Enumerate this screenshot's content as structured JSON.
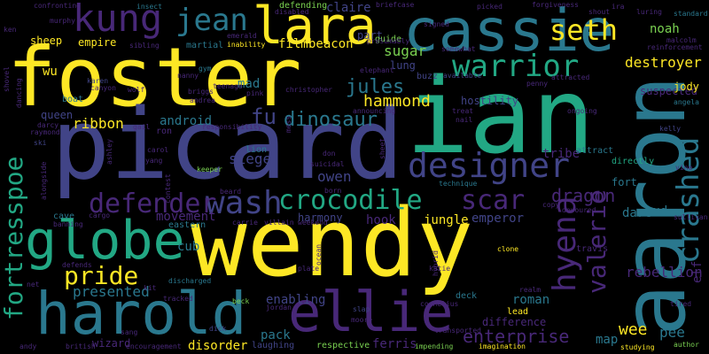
{
  "palette": [
    "#fde725",
    "#7ad151",
    "#22a884",
    "#2a788e",
    "#414487",
    "#482878",
    "#440154"
  ],
  "words": {
    "foster": "foster",
    "ian": "ian",
    "picard": "picard",
    "wendy": "wendy",
    "aaron": "aaron",
    "cassie": "cassie",
    "harold": "harold",
    "ellie": "ellie",
    "globe": "globe",
    "lara": "lara",
    "kung": "kung",
    "jean": "jean",
    "warrior": "warrior",
    "seth": "seth",
    "designer": "designer",
    "wash": "wash",
    "crocodile": "crocodile",
    "defender": "defender",
    "hyena": "hyena",
    "crashed": "crashed",
    "fortresspoe": "fortresspoe",
    "pride": "pride",
    "valerie": "valerie",
    "scar": "scar",
    "dinosaur": "dinosaur",
    "fu": "fu",
    "dragon": "dragon",
    "enterprise": "enterprise",
    "presented": "presented",
    "rebellion": "rebellion",
    "jules": "jules",
    "hammond": "hammond",
    "sugar": "sugar",
    "destroyer": "destroyer",
    "ribbon": "ribbon",
    "android": "android",
    "siege": "siege",
    "owen": "owen",
    "jungle": "jungle",
    "emperor": "emperor",
    "empire": "empire",
    "sheep": "sheep",
    "beacon": "beacon",
    "film": "film",
    "noah": "noah",
    "claire": "claire",
    "part": "part",
    "lung": "lung",
    "mad": "mad",
    "wu": "wu",
    "queen": "queen",
    "cub": "cub",
    "movement": "movement",
    "disorder": "disorder",
    "pack": "pack",
    "enabling": "enabling",
    "ferris": "ferris",
    "wee": "wee",
    "pee": "pee",
    "map": "map",
    "roman": "roman",
    "fort": "fort",
    "dare": "dare",
    "mud": "mud",
    "hook": "hook",
    "harmony": "harmony",
    "tribe": "tribe",
    "suspected": "suspected",
    "hostility": "hostility",
    "jody": "jody",
    "wizard": "wizard",
    "eastern": "eastern",
    "lion": "lion",
    "difference": "difference",
    "lead": "lead",
    "deck": "deck",
    "travis": "travis",
    "defending": "defending",
    "guide": "guide",
    "martial": "martial",
    "laughing": "laughing",
    "respective": "respective",
    "directly": "directly",
    "attract": "attract",
    "ira": "ira",
    "buzz": "buzz",
    "available": "available",
    "forgiveness": "forgiveness",
    "briefcase": "briefcase",
    "elephant": "elephant",
    "announcing": "announcing",
    "christopher": "christopher",
    "cave": "cave",
    "technique": "technique",
    "transported": "transported",
    "impending": "impending",
    "imagination": "imagination",
    "studying": "studying",
    "author": "author",
    "clone": "clone",
    "hybrid": "hybrid",
    "beck": "beck",
    "slap": "slap",
    "dick": "dick",
    "karen": "karen",
    "boat": "boat",
    "ski": "ski",
    "wolf": "wolf",
    "gym": "gym",
    "don": "don",
    "beard": "beard",
    "born": "born",
    "contest": "contest",
    "carrie": "carrie",
    "villain": "villain",
    "weekend": "weekend",
    "plate": "plate",
    "tracked": "tracked",
    "discharged": "discharged",
    "encouragement": "encouragement",
    "british": "british",
    "andy": "andy",
    "sang": "sang",
    "confronting": "confronting",
    "insect": "insect",
    "murphy": "murphy",
    "sibling": "sibling",
    "emerald": "emerald",
    "disabled": "disabled",
    "inability": "inability",
    "presumably": "presumably",
    "signed": "signed",
    "somewhat": "somewhat",
    "picked": "picked",
    "shout": "shout",
    "luring": "luring",
    "standard": "standard",
    "malcolm": "malcolm",
    "reinforcement": "reinforcement",
    "penny": "penny",
    "attracted": "attracted",
    "treat": "treat",
    "nail": "nail",
    "ongoing": "ongoing",
    "angela": "angela",
    "kelly": "kelly",
    "copy": "copy",
    "devoured": "devoured",
    "sullivan": "sullivan",
    "vine": "vine",
    "tired": "tired",
    "elf": "elf",
    "realm": "realm",
    "cornelius": "cornelius",
    "katie": "katie",
    "moore": "moore",
    "dancing": "dancing",
    "shovel": "shovel",
    "canyon": "canyon",
    "darcy": "darcy",
    "raymond": "raymond",
    "carol": "carol",
    "yang": "yang",
    "ashley": "ashley",
    "alongside": "alongside",
    "banning": "banning",
    "cargo": "cargo",
    "net": "net",
    "defends": "defends",
    "kit": "kit",
    "jordan": "jordan",
    "keeper": "keeper",
    "nanny": "nanny",
    "briggs": "briggs",
    "andrea": "andrea",
    "teenage": "teenage",
    "responsibility": "responsibility",
    "gail": "gail",
    "ron": "ron",
    "pink": "pink",
    "suicidal": "suicidal",
    "ken": "ken",
    "mess": "mess",
    "ocean": "ocean",
    "sheet": "sheet"
  }
}
